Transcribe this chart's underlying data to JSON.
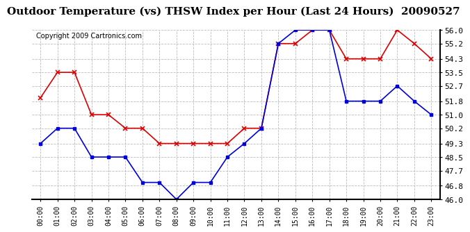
{
  "title": "Outdoor Temperature (vs) THSW Index per Hour (Last 24 Hours)  20090527",
  "copyright": "Copyright 2009 Cartronics.com",
  "hours": [
    "00:00",
    "01:00",
    "02:00",
    "03:00",
    "04:00",
    "05:00",
    "06:00",
    "07:00",
    "08:00",
    "09:00",
    "10:00",
    "11:00",
    "12:00",
    "13:00",
    "14:00",
    "15:00",
    "16:00",
    "17:00",
    "18:00",
    "19:00",
    "20:00",
    "21:00",
    "22:00",
    "23:00"
  ],
  "temp": [
    49.3,
    50.2,
    50.2,
    48.5,
    48.5,
    48.5,
    47.0,
    47.0,
    46.0,
    47.0,
    47.0,
    48.5,
    49.3,
    50.2,
    55.2,
    56.0,
    56.0,
    56.0,
    51.8,
    51.8,
    51.8,
    52.7,
    51.8,
    51.0
  ],
  "thsw": [
    52.0,
    53.5,
    53.5,
    51.0,
    51.0,
    50.2,
    50.2,
    49.3,
    49.3,
    49.3,
    49.3,
    49.3,
    50.2,
    50.2,
    55.2,
    55.2,
    56.0,
    56.0,
    54.3,
    54.3,
    54.3,
    56.0,
    55.2,
    54.3
  ],
  "temp_color": "#0000dd",
  "thsw_color": "#dd0000",
  "bg_color": "#ffffff",
  "plot_bg_color": "#ffffff",
  "grid_color": "#bbbbbb",
  "ylim_min": 46.0,
  "ylim_max": 56.0,
  "yticks": [
    46.0,
    46.8,
    47.7,
    48.5,
    49.3,
    50.2,
    51.0,
    51.8,
    52.7,
    53.5,
    54.3,
    55.2,
    56.0
  ],
  "title_fontsize": 11,
  "copyright_fontsize": 7,
  "marker_size": 3,
  "line_width": 1.2
}
